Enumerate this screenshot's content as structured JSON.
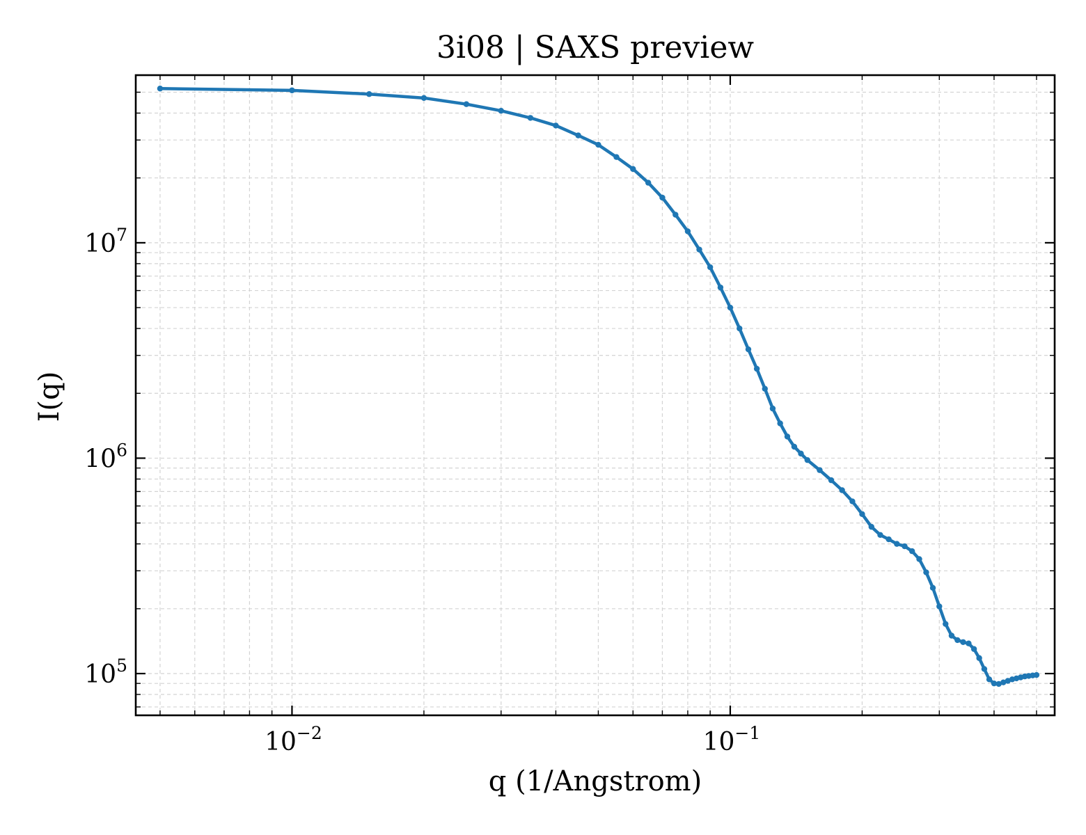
{
  "chart_data": {
    "type": "line",
    "title": "3i08 | SAXS preview",
    "xlabel": "q (1/Angstrom)",
    "ylabel": "I(q)",
    "xscale": "log",
    "yscale": "log",
    "xlim": [
      0.0044,
      0.55
    ],
    "ylim": [
      64000,
      60000000
    ],
    "grid": true,
    "legend": "none",
    "x_ticks": [
      {
        "base": "10",
        "exp": "−2",
        "value": 0.01
      },
      {
        "base": "10",
        "exp": "−1",
        "value": 0.1
      }
    ],
    "y_ticks": [
      {
        "base": "10",
        "exp": "5",
        "value": 100000
      },
      {
        "base": "10",
        "exp": "6",
        "value": 1000000
      },
      {
        "base": "10",
        "exp": "7",
        "value": 10000000
      }
    ],
    "colors": {
      "line": "#1f77b4",
      "marker": "#1f77b4"
    },
    "series": [
      {
        "x": [
          0.005,
          0.01,
          0.015,
          0.02,
          0.025,
          0.03,
          0.035,
          0.04,
          0.045,
          0.05,
          0.055,
          0.06,
          0.065,
          0.07,
          0.075,
          0.08,
          0.085,
          0.09,
          0.095,
          0.1,
          0.105,
          0.11,
          0.115,
          0.12,
          0.125,
          0.13,
          0.135,
          0.14,
          0.145,
          0.15,
          0.16,
          0.17,
          0.18,
          0.19,
          0.2,
          0.21,
          0.22,
          0.23,
          0.24,
          0.25,
          0.26,
          0.27,
          0.28,
          0.29,
          0.3,
          0.31,
          0.32,
          0.33,
          0.34,
          0.35,
          0.36,
          0.37,
          0.38,
          0.39,
          0.4,
          0.41,
          0.42,
          0.43,
          0.44,
          0.45,
          0.46,
          0.47,
          0.48,
          0.49,
          0.5
        ],
        "y": [
          52000000,
          51000000,
          49000000,
          47000000,
          44000000,
          41000000,
          38000000,
          35000000,
          31500000,
          28500000,
          25000000,
          22000000,
          19000000,
          16200000,
          13500000,
          11300000,
          9300000,
          7700000,
          6200000,
          5000000,
          4000000,
          3200000,
          2600000,
          2100000,
          1700000,
          1450000,
          1260000,
          1130000,
          1050000,
          980000,
          880000,
          790000,
          710000,
          630000,
          550000,
          480000,
          440000,
          420000,
          400000,
          390000,
          370000,
          340000,
          295000,
          250000,
          205000,
          170000,
          150000,
          143000,
          140000,
          138000,
          130000,
          118000,
          105000,
          94000,
          90000,
          89500,
          91000,
          92500,
          94000,
          95000,
          96000,
          97000,
          97500,
          98000,
          98500
        ]
      }
    ]
  }
}
